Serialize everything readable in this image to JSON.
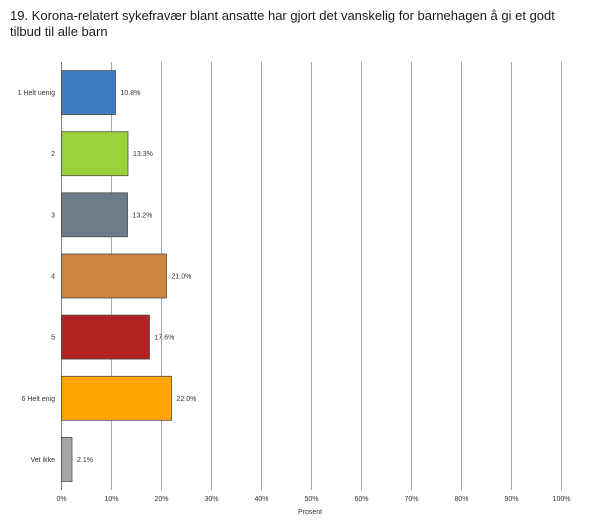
{
  "chart_data": {
    "type": "bar",
    "orientation": "horizontal",
    "title": "19. Korona-relatert sykefravær blant ansatte har gjort det vanskelig for barnehagen å gi et godt tilbud til alle barn",
    "categories": [
      "1 Helt uenig",
      "2",
      "3",
      "4",
      "5",
      "6 Helt enig",
      "Vet ikke"
    ],
    "values": [
      10.8,
      13.3,
      13.2,
      21.0,
      17.6,
      22.0,
      2.1
    ],
    "value_labels": [
      "10.8%",
      "13.3%",
      "13.2%",
      "21.0%",
      "17.6%",
      "22.0%",
      "2.1%"
    ],
    "colors": [
      "#3d7dbf",
      "#9bd13a",
      "#6e7b8b",
      "#cd853f",
      "#b22222",
      "#ffa500",
      "#a6a6a6"
    ],
    "xlabel": "Prosent",
    "ylabel": "",
    "xlim": [
      0,
      100
    ],
    "x_ticks": [
      0,
      10,
      20,
      30,
      40,
      50,
      60,
      70,
      80,
      90,
      100
    ],
    "x_tick_labels": [
      "0%",
      "10%",
      "20%",
      "30%",
      "40%",
      "50%",
      "60%",
      "70%",
      "80%",
      "90%",
      "100%"
    ],
    "grid": true,
    "legend": "none"
  }
}
